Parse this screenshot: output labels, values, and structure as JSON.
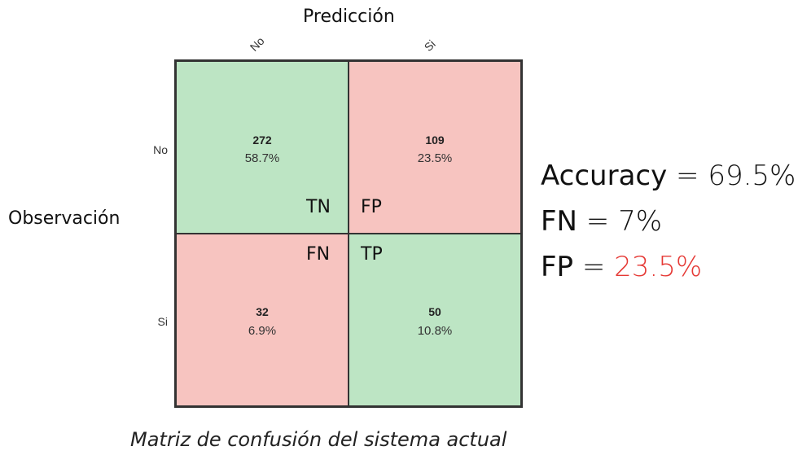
{
  "chart_data": {
    "type": "heatmap",
    "xlabel": "Predicción",
    "ylabel": "Observación",
    "x_categories": [
      "No",
      "Si"
    ],
    "y_categories": [
      "No",
      "Si"
    ],
    "cells": [
      [
        {
          "count": "272",
          "percent": "58.7%",
          "label": "TN",
          "status": "correct"
        },
        {
          "count": "109",
          "percent": "23.5%",
          "label": "FP",
          "status": "wrong"
        }
      ],
      [
        {
          "count": "32",
          "percent": "6.9%",
          "label": "FN",
          "status": "wrong"
        },
        {
          "count": "50",
          "percent": "10.8%",
          "label": "TP",
          "status": "correct"
        }
      ]
    ],
    "colors": {
      "correct": "#bde5c4",
      "wrong": "#f7c4c0",
      "highlight": "#e53935"
    }
  },
  "metrics": {
    "accuracy": {
      "name": "Accuracy",
      "eq": " = ",
      "value": "69.5%"
    },
    "fn": {
      "name": "FN",
      "eq": " = ",
      "value": "7%"
    },
    "fp": {
      "name": "FP",
      "eq": " = ",
      "value": "23.5%"
    }
  },
  "caption": "Matriz de confusión del sistema actual"
}
